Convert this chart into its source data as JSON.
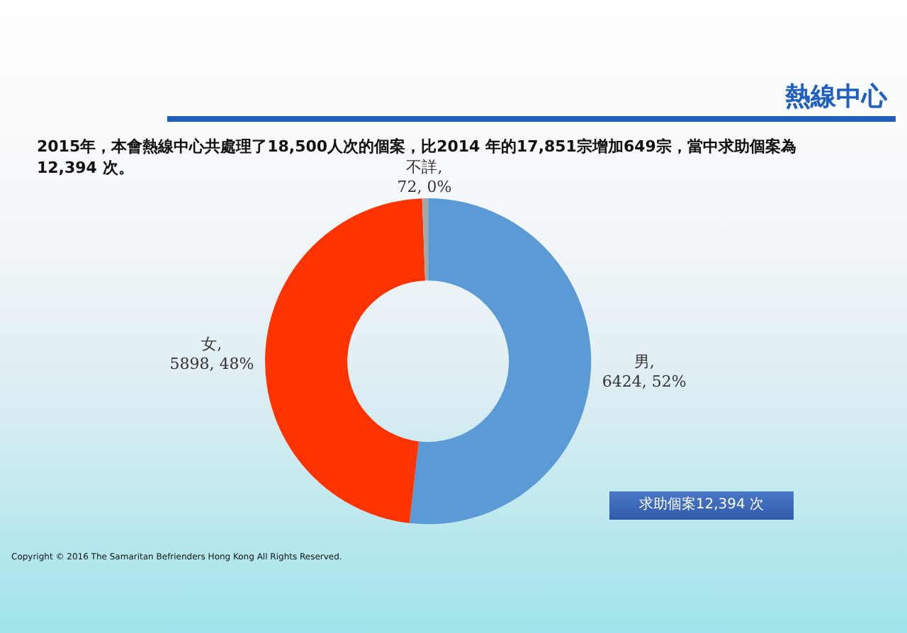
{
  "chart_data": {
    "type": "donut",
    "title": "熱線中心",
    "subtitle": "2015年，本會熱線中心共處理了18,500人次的個案，比2014 年的17,851宗增加649宗，當中求助個案為 12,394 次。",
    "categories": [
      "男",
      "女",
      "不詳"
    ],
    "values": [
      6424,
      5898,
      72
    ],
    "value_labels": [
      ",\n6424, 52%",
      ",\n5898, 48%",
      ",\n72, 0%"
    ],
    "colors": [
      "#5b9bd5",
      "#ff3300",
      "#a6a6a6"
    ],
    "legend": false,
    "annotations": [
      "求助個案12,394 次",
      "Copyright © 2016 The Samaritan Befrienders Hong Kong All Rights Reserved."
    ]
  }
}
